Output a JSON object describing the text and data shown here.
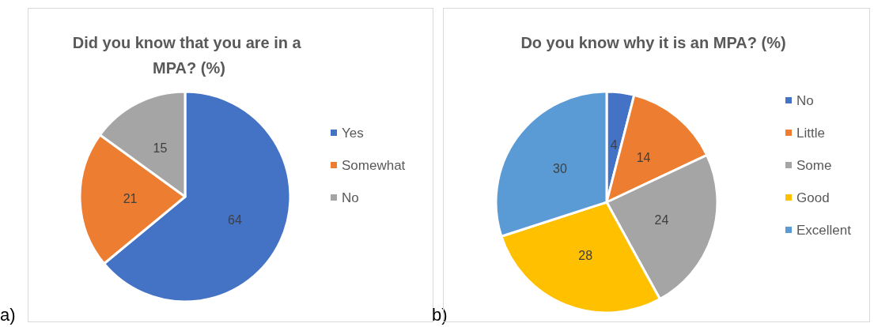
{
  "chart_data": [
    {
      "type": "pie",
      "title": "Did you know that you are in a MPA? (%)",
      "categories": [
        "Yes",
        "Somewhat",
        "No"
      ],
      "values": [
        64,
        21,
        15
      ],
      "colors": [
        "#4472c4",
        "#ed7d31",
        "#a5a5a5"
      ],
      "data_labels": true,
      "legend": "right",
      "annotations": [
        "a)"
      ]
    },
    {
      "type": "pie",
      "title": "Do you know why it is an MPA? (%)",
      "categories": [
        "No",
        "Little",
        "Some",
        "Good",
        "Excellent"
      ],
      "values": [
        4,
        14,
        24,
        28,
        30
      ],
      "colors": [
        "#4472c4",
        "#ed7d31",
        "#a5a5a5",
        "#ffc000",
        "#5b9bd5"
      ],
      "data_labels": true,
      "legend": "right",
      "annotations": [
        "b)"
      ]
    }
  ]
}
